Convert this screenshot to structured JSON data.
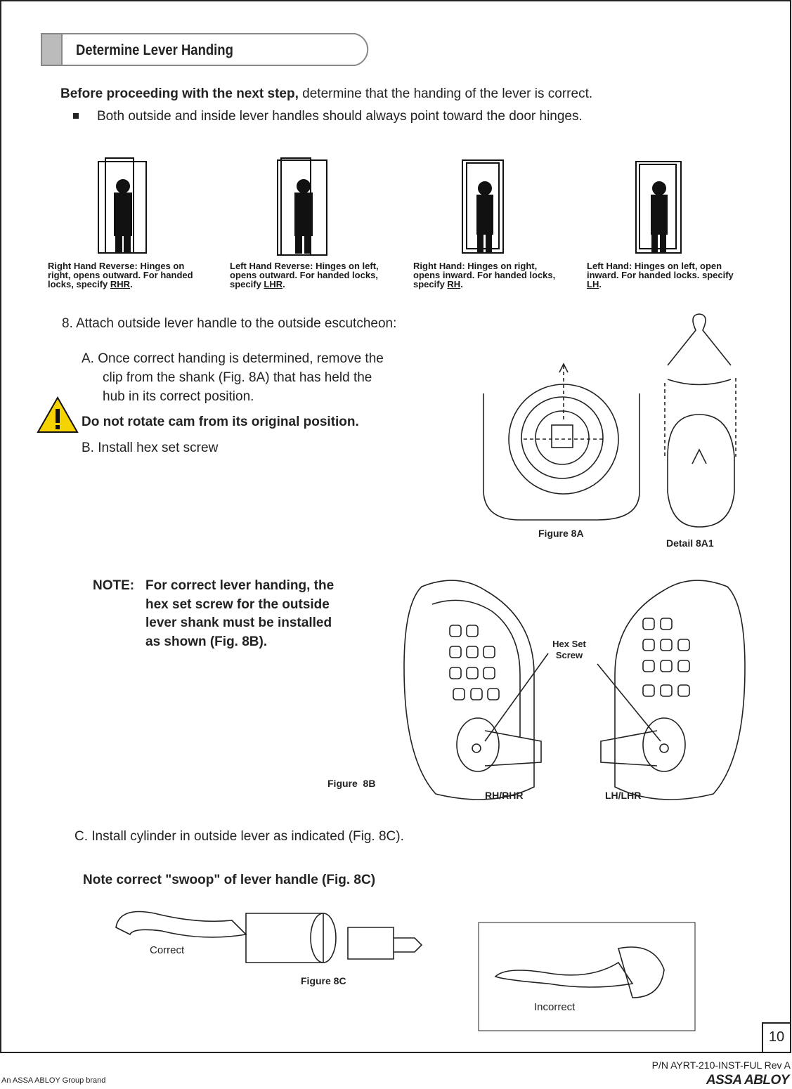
{
  "header": {
    "title": "Determine Lever Handing"
  },
  "intro": {
    "lead": "Before proceeding with the next step,",
    "text": " determine that the handing of the lever is correct.",
    "bullet": "Both outside and inside lever handles should always point toward the door hinges."
  },
  "handing": [
    {
      "prefix": "Right Hand Reverse: Hinges on right, opens outward. For handed locks, specify ",
      "code": "RHR",
      "suffix": "."
    },
    {
      "prefix": "Left Hand Reverse: Hinges on left, opens outward. For handed locks, specify ",
      "code": "LHR",
      "suffix": "."
    },
    {
      "prefix": "Right Hand: Hinges on right, opens inward. For handed locks, specify ",
      "code": "RH",
      "suffix": "."
    },
    {
      "prefix": "Left Hand: Hinges on left, open inward. For handed locks. specify ",
      "code": "LH",
      "suffix": "."
    }
  ],
  "step8": {
    "title": "8. Attach outside lever handle to the outside escutcheon:",
    "a_lines": [
      "A. Once correct handing is determined, remove the",
      "clip from the shank (Fig. 8A) that has held the",
      "hub in its correct position."
    ],
    "warning": "Do not rotate cam from its original position.",
    "b": "B. Install hex set screw",
    "fig8a": "Figure 8A",
    "detail8a1": "Detail 8A1",
    "note_label": "NOTE:",
    "note_lines": [
      "For correct lever handing, the",
      "hex set screw for the outside",
      "lever shank must be installed",
      "as shown (Fig. 8B)."
    ],
    "hex_lines": [
      "Hex Set",
      "Screw"
    ],
    "rh": "RH/RHR",
    "lh": "LH/LHR",
    "fig8b": "Figure  8B",
    "c": "C. Install cylinder in outside lever as indicated (Fig. 8C).",
    "swoop": "Note correct \"swoop\" of lever handle (Fig. 8C)",
    "correct": "Correct",
    "fig8c": "Figure 8C",
    "incorrect": "Incorrect"
  },
  "footer": {
    "page": "10",
    "pn": "P/N AYRT-210-INST-FUL Rev A",
    "brand_note": "An ASSA ABLOY Group brand",
    "brand": "ASSA ABLOY"
  }
}
